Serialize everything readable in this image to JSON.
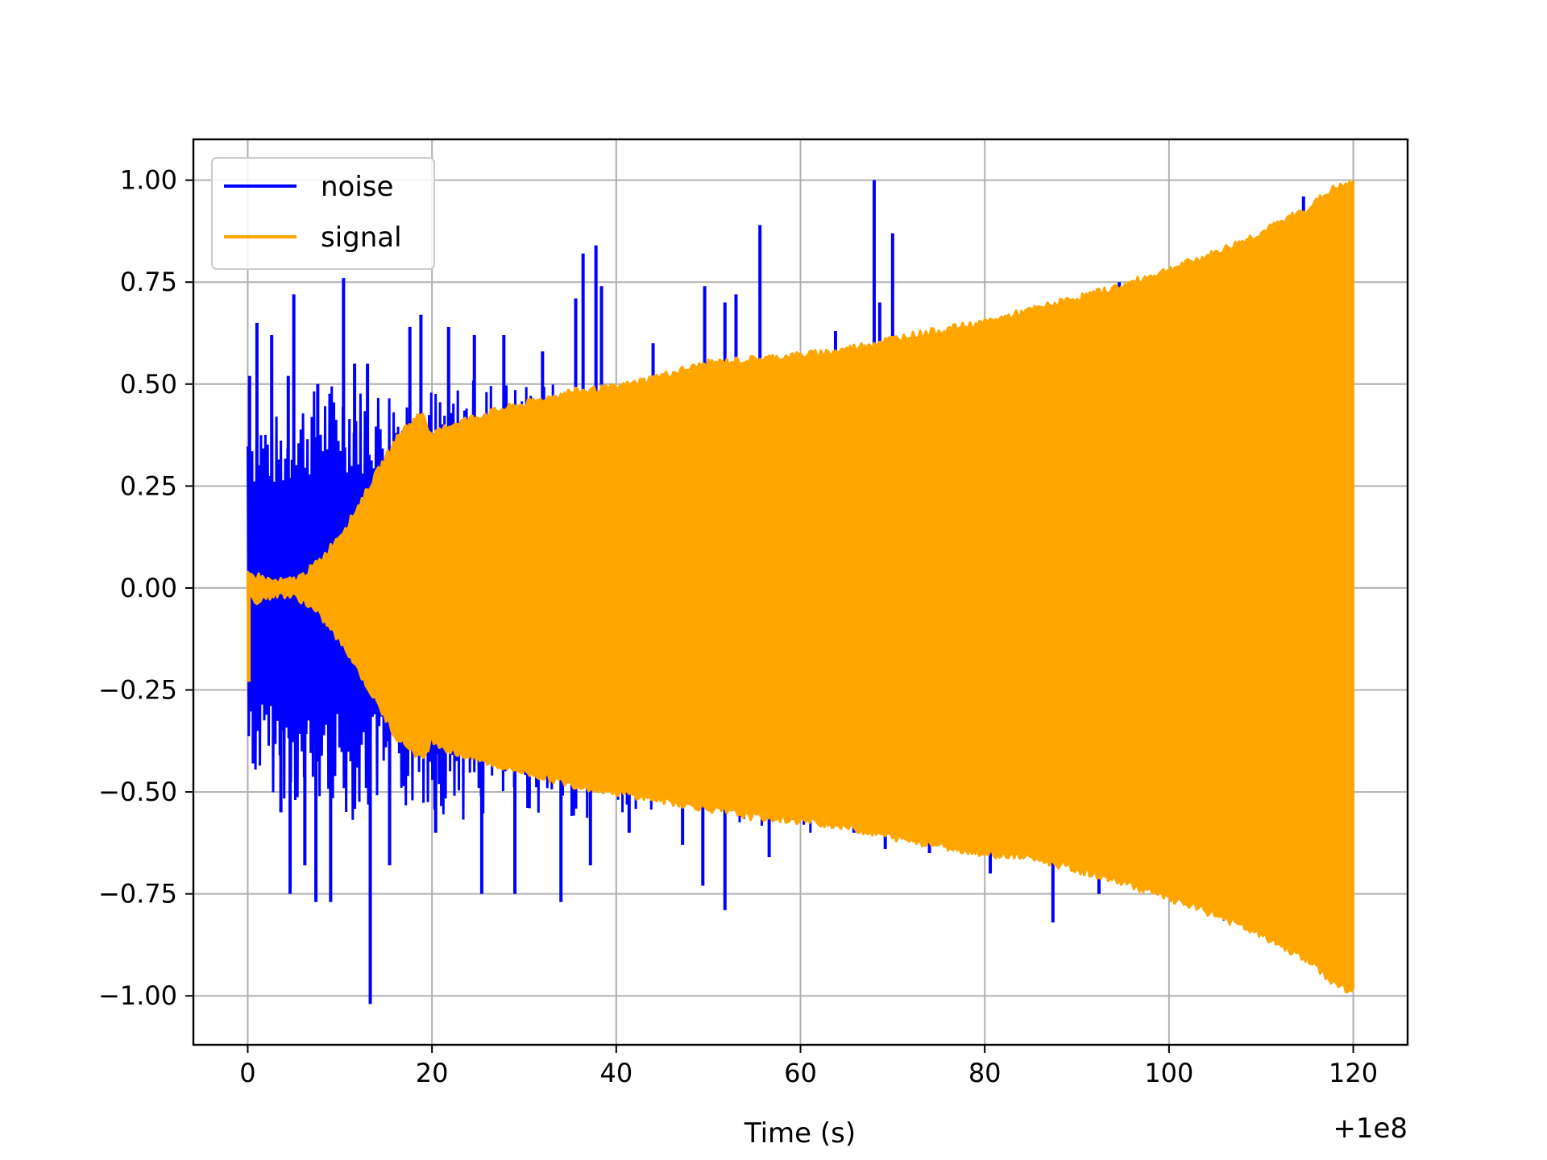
{
  "chart_data": {
    "type": "line",
    "title": "",
    "xlabel": "Time (s)",
    "ylabel": "",
    "x_offset_label": "+1e8",
    "xlim": [
      -5.9,
      125.9
    ],
    "ylim": [
      -1.12,
      1.1
    ],
    "xticks": [
      0,
      20,
      40,
      60,
      80,
      100,
      120
    ],
    "xtick_labels": [
      "0",
      "20",
      "40",
      "60",
      "80",
      "100",
      "120"
    ],
    "yticks": [
      1.0,
      0.75,
      0.5,
      0.25,
      0.0,
      -0.25,
      -0.5,
      -0.75,
      -1.0
    ],
    "ytick_labels": [
      "1.00",
      "0.75",
      "0.50",
      "0.25",
      "0.00",
      "−0.25",
      "−0.50",
      "−0.75",
      "−1.00"
    ],
    "grid": true,
    "legend": {
      "placement": "upper-left",
      "entries": [
        "noise",
        "signal"
      ]
    },
    "series": [
      {
        "name": "noise",
        "color": "#0000ff",
        "x_range": [
          0,
          120
        ],
        "envelope": {
          "x": [
            0,
            2,
            4,
            6,
            8,
            10,
            12,
            14,
            16,
            18,
            20,
            25,
            30,
            35,
            40,
            45,
            50,
            55,
            60,
            65,
            70,
            75,
            80,
            85,
            90,
            95,
            100,
            105,
            110,
            115,
            120
          ],
          "upper": [
            0.45,
            0.44,
            0.42,
            0.48,
            0.5,
            0.52,
            0.5,
            0.5,
            0.52,
            0.5,
            0.5,
            0.52,
            0.52,
            0.5,
            0.5,
            0.5,
            0.5,
            0.52,
            0.52,
            0.52,
            0.55,
            0.55,
            0.56,
            0.58,
            0.62,
            0.68,
            0.72,
            0.78,
            0.82,
            0.88,
            0.9
          ],
          "lower": [
            -0.45,
            -0.5,
            -0.52,
            -0.55,
            -0.55,
            -0.55,
            -0.58,
            -0.55,
            -0.55,
            -0.55,
            -0.55,
            -0.58,
            -0.55,
            -0.58,
            -0.55,
            -0.56,
            -0.58,
            -0.58,
            -0.6,
            -0.62,
            -0.6,
            -0.62,
            -0.64,
            -0.66,
            -0.68,
            -0.7,
            -0.76,
            -0.82,
            -0.88,
            -0.92,
            -0.95
          ]
        },
        "spikes": [
          {
            "x": 0.2,
            "y": 0.52
          },
          {
            "x": 0.6,
            "y": -0.43
          },
          {
            "x": 1.0,
            "y": 0.65
          },
          {
            "x": 2.6,
            "y": 0.62
          },
          {
            "x": 3.6,
            "y": -0.55
          },
          {
            "x": 4.4,
            "y": 0.52
          },
          {
            "x": 5.0,
            "y": 0.72
          },
          {
            "x": 4.6,
            "y": -0.75
          },
          {
            "x": 6.2,
            "y": -0.68
          },
          {
            "x": 7.6,
            "y": 0.5
          },
          {
            "x": 7.4,
            "y": -0.77
          },
          {
            "x": 9.0,
            "y": -0.77
          },
          {
            "x": 10.4,
            "y": 0.76
          },
          {
            "x": 11.6,
            "y": 0.55
          },
          {
            "x": 13.0,
            "y": 0.55
          },
          {
            "x": 13.3,
            "y": -1.02
          },
          {
            "x": 15.4,
            "y": -0.68
          },
          {
            "x": 17.6,
            "y": 0.64
          },
          {
            "x": 18.8,
            "y": 0.67
          },
          {
            "x": 20.4,
            "y": -0.6
          },
          {
            "x": 21.8,
            "y": 0.64
          },
          {
            "x": 24.6,
            "y": 0.62
          },
          {
            "x": 25.4,
            "y": -0.75
          },
          {
            "x": 27.8,
            "y": 0.62
          },
          {
            "x": 29.0,
            "y": -0.75
          },
          {
            "x": 32.0,
            "y": 0.58
          },
          {
            "x": 34.0,
            "y": -0.77
          },
          {
            "x": 35.6,
            "y": 0.71
          },
          {
            "x": 36.4,
            "y": 0.82
          },
          {
            "x": 37.2,
            "y": -0.68
          },
          {
            "x": 37.8,
            "y": 0.84
          },
          {
            "x": 38.4,
            "y": 0.74
          },
          {
            "x": 41.4,
            "y": -0.6
          },
          {
            "x": 44.0,
            "y": 0.6
          },
          {
            "x": 47.2,
            "y": -0.63
          },
          {
            "x": 49.4,
            "y": -0.73
          },
          {
            "x": 49.6,
            "y": 0.74
          },
          {
            "x": 51.8,
            "y": 0.7
          },
          {
            "x": 51.8,
            "y": -0.79
          },
          {
            "x": 53.0,
            "y": 0.72
          },
          {
            "x": 55.6,
            "y": 0.89
          },
          {
            "x": 56.6,
            "y": -0.66
          },
          {
            "x": 61.0,
            "y": 0.58
          },
          {
            "x": 63.8,
            "y": 0.63
          },
          {
            "x": 65.8,
            "y": -0.6
          },
          {
            "x": 68.0,
            "y": 1.0
          },
          {
            "x": 68.6,
            "y": 0.7
          },
          {
            "x": 70.0,
            "y": 0.87
          },
          {
            "x": 69.2,
            "y": -0.64
          },
          {
            "x": 74.0,
            "y": -0.65
          },
          {
            "x": 80.6,
            "y": -0.7
          },
          {
            "x": 83.4,
            "y": -0.65
          },
          {
            "x": 87.4,
            "y": 0.6
          },
          {
            "x": 87.4,
            "y": -0.82
          },
          {
            "x": 92.4,
            "y": -0.75
          },
          {
            "x": 94.6,
            "y": 0.75
          },
          {
            "x": 114.6,
            "y": 0.96
          }
        ]
      },
      {
        "name": "signal",
        "color": "#ffa500",
        "x_range": [
          0,
          120
        ],
        "envelope": {
          "x": [
            0,
            1,
            2,
            3,
            4,
            5,
            6,
            7,
            8,
            9,
            10,
            11,
            12,
            13,
            14,
            15,
            16,
            17,
            18,
            19,
            20,
            22,
            25,
            28,
            30,
            35,
            40,
            45,
            50,
            55,
            60,
            64,
            66,
            70,
            75,
            80,
            85,
            90,
            95,
            100,
            105,
            110,
            115,
            118,
            120
          ],
          "upper": [
            0.03,
            0.03,
            0.02,
            0.015,
            0.015,
            0.02,
            0.03,
            0.05,
            0.07,
            0.1,
            0.13,
            0.16,
            0.2,
            0.24,
            0.28,
            0.32,
            0.36,
            0.39,
            0.41,
            0.43,
            0.37,
            0.4,
            0.42,
            0.44,
            0.45,
            0.48,
            0.49,
            0.52,
            0.55,
            0.56,
            0.57,
            0.58,
            0.59,
            0.61,
            0.63,
            0.65,
            0.68,
            0.71,
            0.74,
            0.78,
            0.82,
            0.87,
            0.93,
            0.98,
            0.99
          ],
          "lower": [
            -0.02,
            -0.03,
            -0.02,
            -0.015,
            -0.015,
            -0.02,
            -0.03,
            -0.05,
            -0.07,
            -0.1,
            -0.13,
            -0.16,
            -0.2,
            -0.24,
            -0.28,
            -0.32,
            -0.36,
            -0.38,
            -0.4,
            -0.42,
            -0.37,
            -0.4,
            -0.42,
            -0.44,
            -0.45,
            -0.48,
            -0.5,
            -0.52,
            -0.54,
            -0.56,
            -0.57,
            -0.58,
            -0.59,
            -0.61,
            -0.63,
            -0.65,
            -0.66,
            -0.69,
            -0.72,
            -0.76,
            -0.8,
            -0.85,
            -0.91,
            -0.97,
            -0.99
          ]
        }
      }
    ]
  }
}
